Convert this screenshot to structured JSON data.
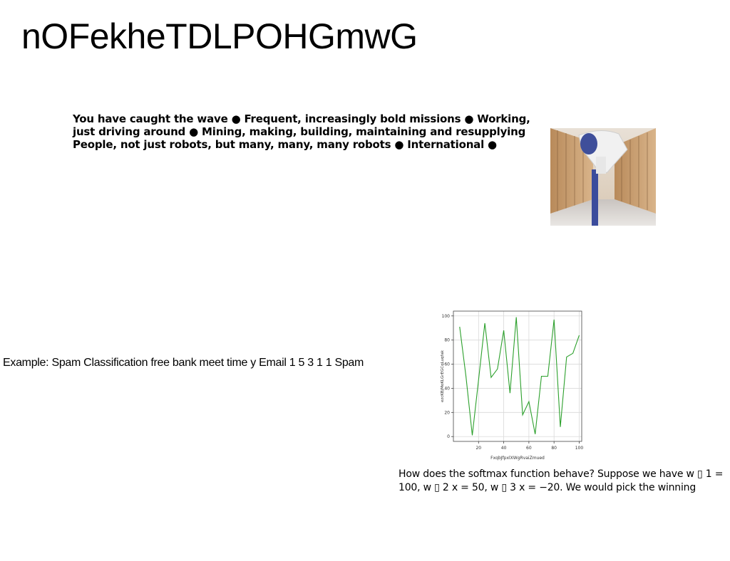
{
  "page": {
    "title": "nOFekheTDLPOHGmwG"
  },
  "bullets_text": "You have caught the wave ● Frequent, increasingly bold missions ● Working, just driving around ● Mining, making, building, maintaining and resupplying People, not just robots, but many, many, many robots ● International ●",
  "example_text": "Example: Spam Classification free bank meet time y Email 1 5 3 1 1 Spam",
  "softmax_text": "How does the softmax function behave? Suppose we have w ▯ 1 = 100, w ▯ 2 x = 50, w ▯ 3 x = −20. We would pick the winning",
  "photo": {
    "icon": "person-photo-icon"
  },
  "chart_data": {
    "type": "line",
    "xlabel": "FxqbJfpxlXWgRvaiZmued",
    "ylabel": "ezcKBjMoKLGrEGCqLuqfak",
    "xlim": [
      0,
      102
    ],
    "ylim": [
      -4,
      104
    ],
    "xticks": [
      20,
      40,
      60,
      80,
      100
    ],
    "yticks": [
      0,
      20,
      40,
      60,
      80,
      100
    ],
    "grid": true,
    "series": [
      {
        "color": "#2ca02c",
        "x": [
          5,
          10,
          15,
          20,
          25,
          30,
          35,
          40,
          45,
          50,
          55,
          60,
          65,
          70,
          75,
          80,
          85,
          90,
          95,
          100
        ],
        "y": [
          91,
          50,
          1,
          47,
          94,
          49,
          56,
          88,
          36,
          99,
          18,
          29,
          2,
          50,
          50,
          97,
          8,
          66,
          69,
          84
        ]
      }
    ]
  }
}
